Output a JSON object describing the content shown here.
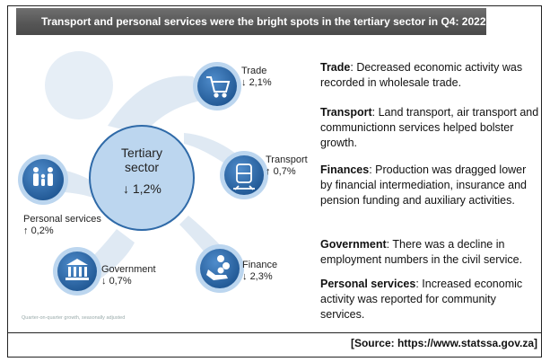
{
  "title": "Transport and personal services were the bright spots in the tertiary sector in Q4: 2022",
  "center": {
    "title": "Tertiary sector",
    "value": "1,2%",
    "direction": "down"
  },
  "sectors": [
    {
      "name": "Trade",
      "value": "2,1%",
      "direction": "down",
      "icon": "shopping-cart-icon"
    },
    {
      "name": "Transport",
      "value": "0,7%",
      "direction": "up",
      "icon": "train-icon"
    },
    {
      "name": "Finance",
      "value": "2,3%",
      "direction": "down",
      "icon": "hand-coins-icon"
    },
    {
      "name": "Government",
      "value": "0,7%",
      "direction": "down",
      "icon": "government-building-icon"
    },
    {
      "name": "Personal services",
      "value": "0,2%",
      "direction": "up",
      "icon": "family-icon"
    }
  ],
  "footnote": "Quarter-on-quarter growth, seasonally adjusted",
  "descriptions": [
    {
      "term": "Trade",
      "text": "Decreased economic activity was recorded in wholesale trade."
    },
    {
      "term": "Transport",
      "text": "Land transport, air transport and communictionn services helped bolster growth."
    },
    {
      "term": "Finances",
      "text": "Production was dragged lower by financial intermediation, insurance and pension funding and auxiliary activities."
    },
    {
      "term": "Government",
      "text": "There was a decline in employment numbers in the civil service."
    },
    {
      "term": "Personal services",
      "text": "Increased economic activity was reported for community services."
    }
  ],
  "source": "[Source: https://www.statssa.gov.za]",
  "colors": {
    "circle_dark": "#2f6aa8",
    "circle_light": "#bcd6ef",
    "center_fill": "#bcd6ef",
    "banner": "#5a5a5a"
  }
}
